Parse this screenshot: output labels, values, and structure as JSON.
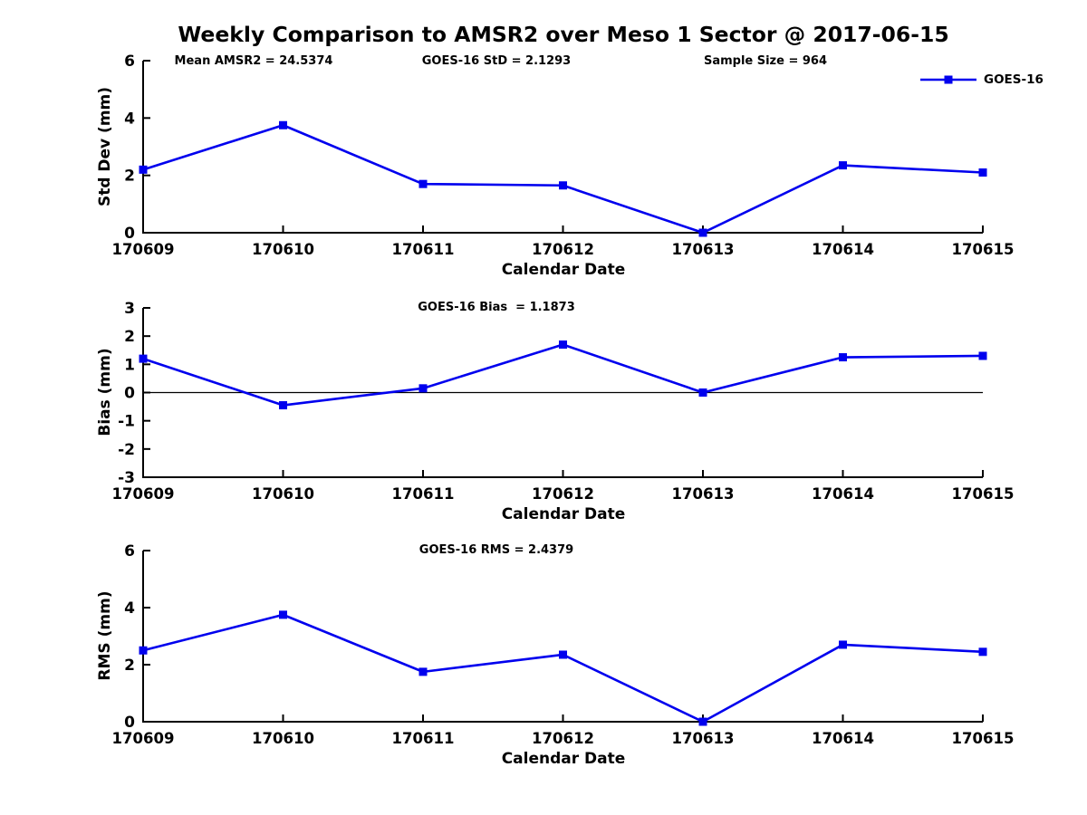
{
  "title": "Weekly Comparison to AMSR2 over Meso 1 Sector @ 2017-06-15",
  "legend": {
    "label": "GOES-16",
    "color": "#0000ee",
    "marker": "filled-square",
    "position": "top-right"
  },
  "colors": {
    "series": "#0000ee",
    "axis": "#000000",
    "text": "#000000",
    "background": "#ffffff"
  },
  "chart_data": [
    {
      "type": "line",
      "name": "std-dev",
      "ylabel": "Std Dev (mm)",
      "xlabel": "Calendar Date",
      "categories": [
        "170609",
        "170610",
        "170611",
        "170612",
        "170613",
        "170614",
        "170615"
      ],
      "series": [
        {
          "name": "GOES-16",
          "values": [
            2.2,
            3.75,
            1.7,
            1.65,
            0.0,
            2.35,
            2.1
          ]
        }
      ],
      "ylim": [
        0,
        6
      ],
      "yticks": [
        0,
        2,
        4,
        6
      ],
      "grid": false,
      "zero_line": false,
      "annotations": [
        "Mean AMSR2 = 24.5374",
        "GOES-16 StD = 2.1293",
        "Sample Size = 964"
      ]
    },
    {
      "type": "line",
      "name": "bias",
      "ylabel": "Bias (mm)",
      "xlabel": "Calendar Date",
      "categories": [
        "170609",
        "170610",
        "170611",
        "170612",
        "170613",
        "170614",
        "170615"
      ],
      "series": [
        {
          "name": "GOES-16",
          "values": [
            1.2,
            -0.45,
            0.15,
            1.7,
            0.0,
            1.25,
            1.3
          ]
        }
      ],
      "ylim": [
        -3,
        3
      ],
      "yticks": [
        -3,
        -2,
        -1,
        0,
        1,
        2,
        3
      ],
      "grid": false,
      "zero_line": true,
      "annotations": [
        "GOES-16 Bias  = 1.1873"
      ]
    },
    {
      "type": "line",
      "name": "rms",
      "ylabel": "RMS (mm)",
      "xlabel": "Calendar Date",
      "categories": [
        "170609",
        "170610",
        "170611",
        "170612",
        "170613",
        "170614",
        "170615"
      ],
      "series": [
        {
          "name": "GOES-16",
          "values": [
            2.5,
            3.75,
            1.75,
            2.35,
            0.0,
            2.7,
            2.45
          ]
        }
      ],
      "ylim": [
        0,
        6
      ],
      "yticks": [
        0,
        2,
        4,
        6
      ],
      "grid": false,
      "zero_line": false,
      "annotations": [
        "GOES-16 RMS = 2.4379"
      ]
    }
  ]
}
